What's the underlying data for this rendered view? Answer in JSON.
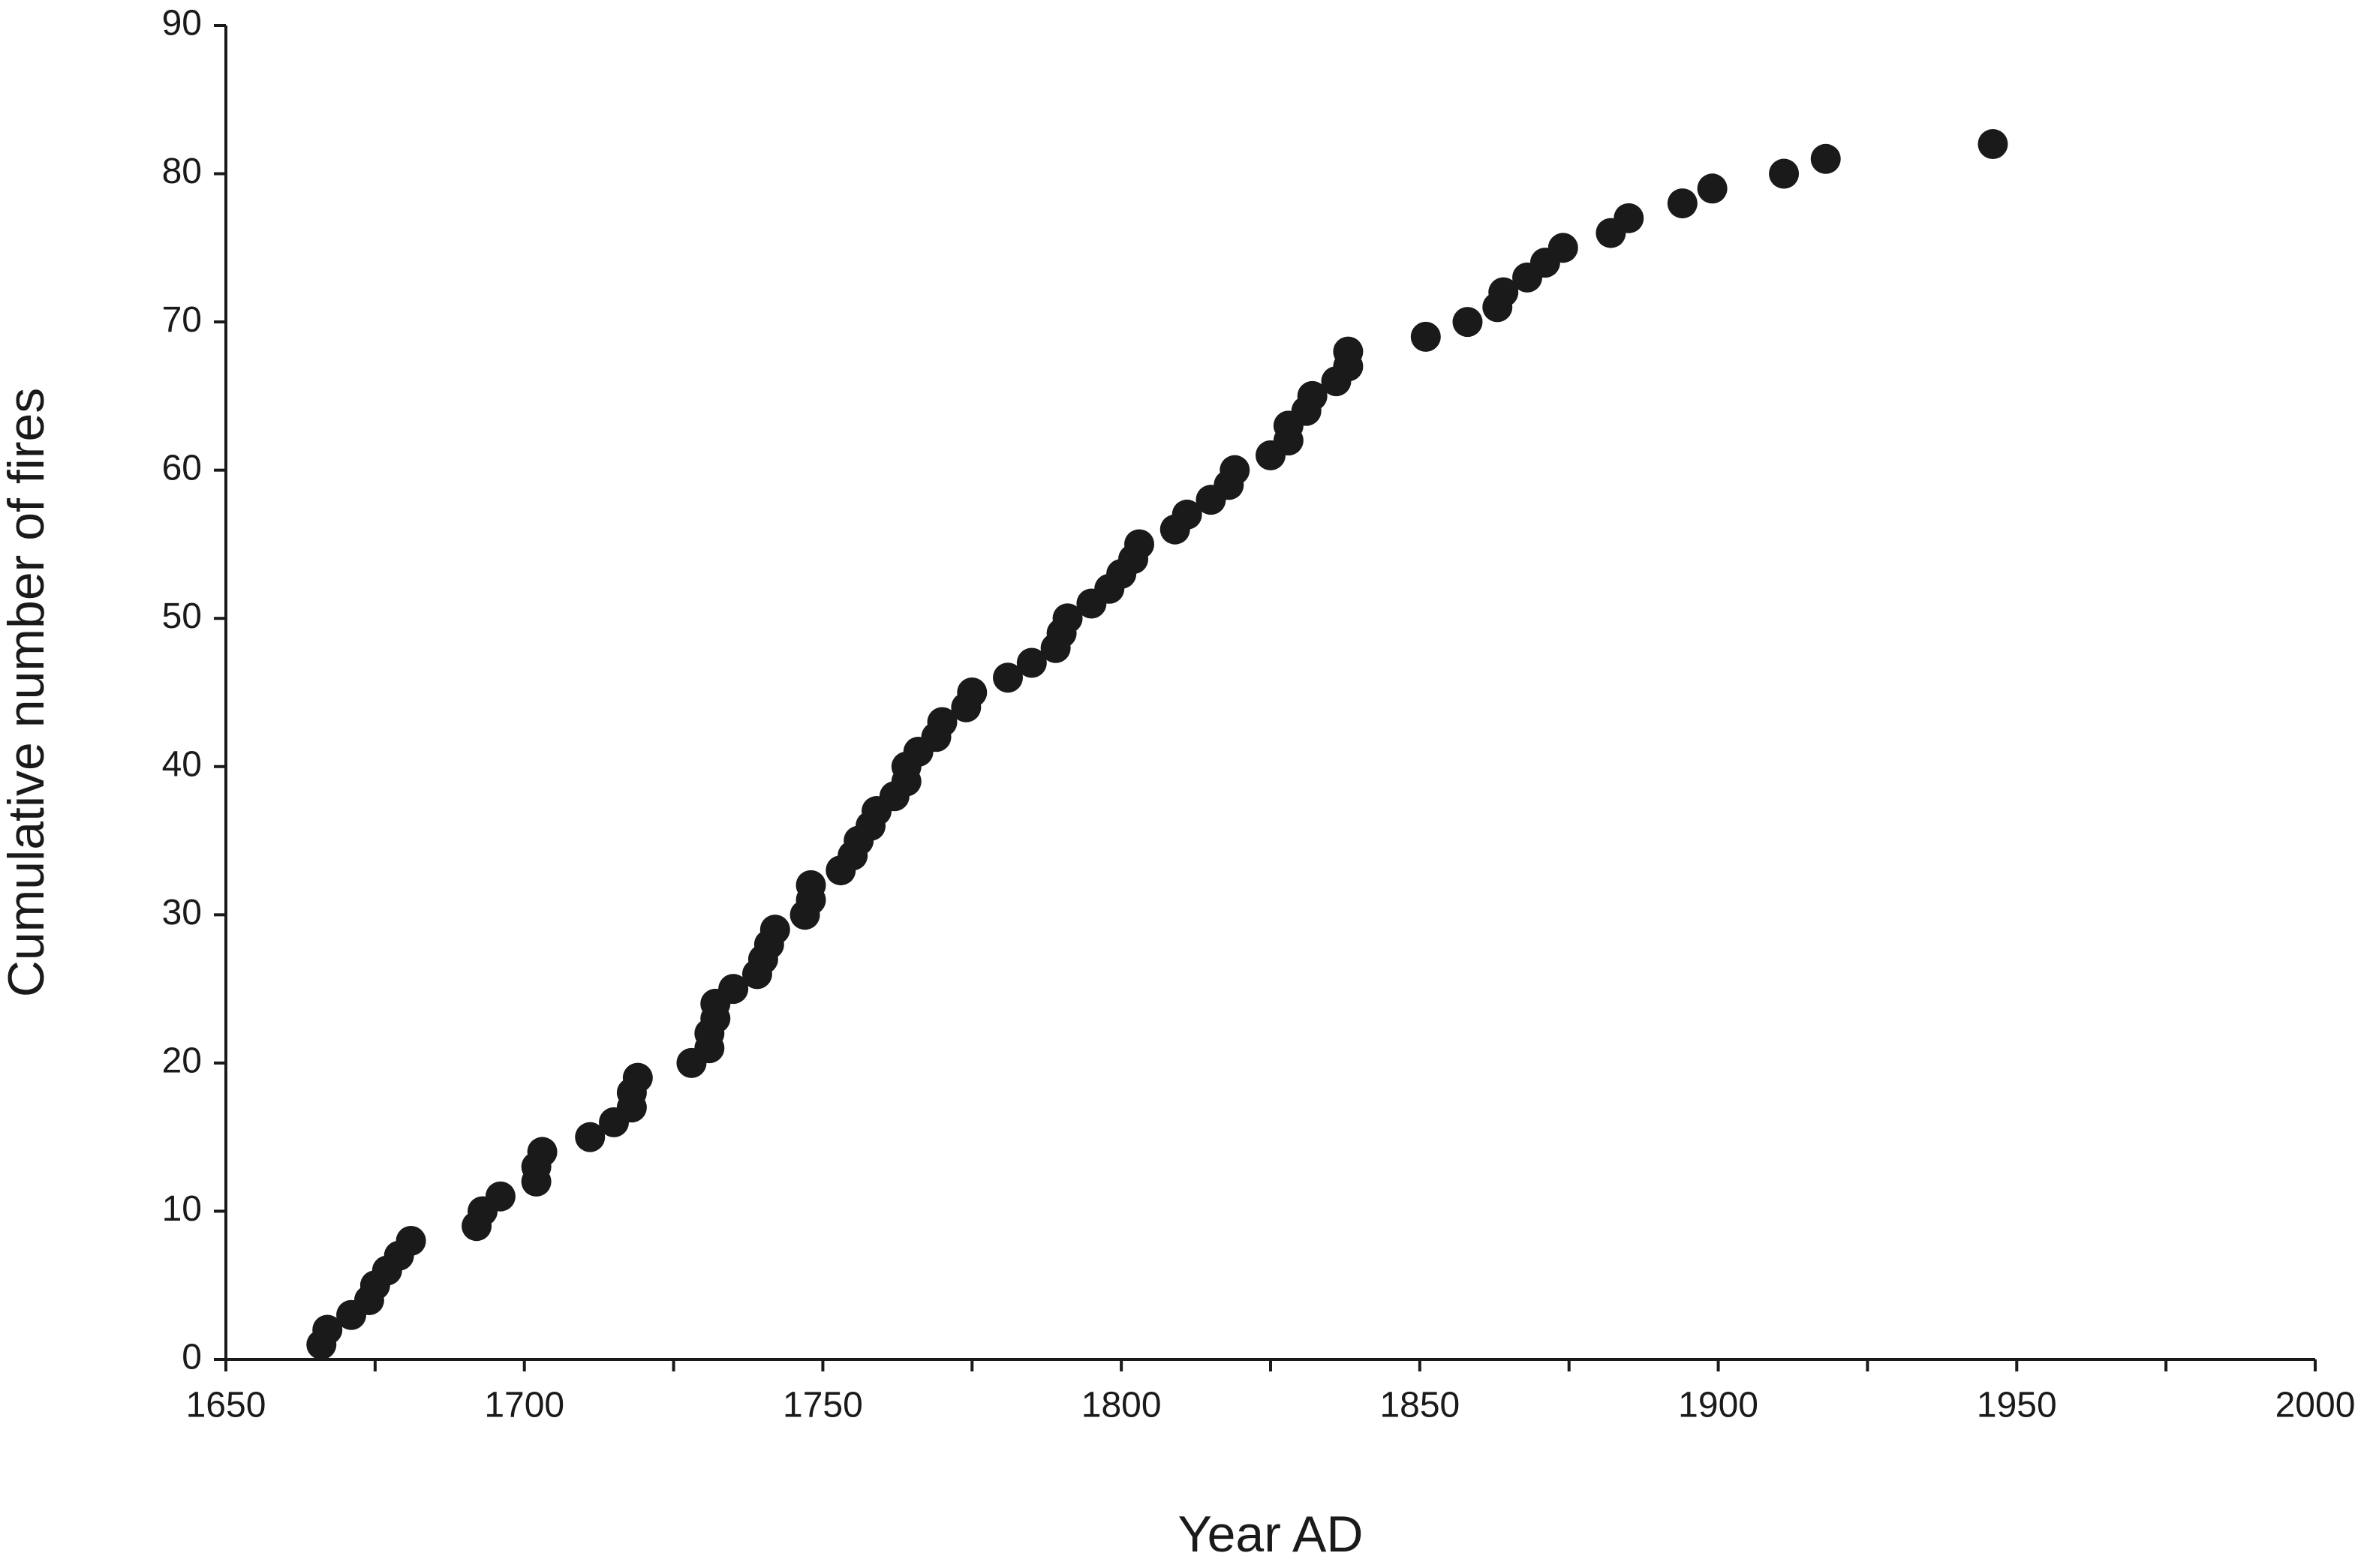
{
  "chart_data": {
    "type": "scatter",
    "x_label": "Year AD",
    "y_label": "Cumulative number of fires",
    "color": "#1a1a1a",
    "grid": false,
    "xlim": [
      1650,
      2000
    ],
    "xticks": [
      1650,
      1700,
      1750,
      1800,
      1850,
      1900,
      1950,
      2000
    ],
    "ylim": [
      0,
      90
    ],
    "yticks": [
      0,
      10,
      20,
      30,
      40,
      50,
      60,
      70,
      80,
      90
    ],
    "x": [
      1666,
      1667,
      1671,
      1674,
      1675,
      1677,
      1679,
      1681,
      1692,
      1693,
      1696,
      1702,
      1702,
      1703,
      1711,
      1715,
      1718,
      1718,
      1719,
      1728,
      1731,
      1731,
      1732,
      1732,
      1735,
      1739,
      1740,
      1741,
      1742,
      1747,
      1748,
      1748,
      1753,
      1755,
      1756,
      1758,
      1759,
      1762,
      1764,
      1764,
      1766,
      1769,
      1770,
      1774,
      1775,
      1781,
      1785,
      1789,
      1790,
      1791,
      1795,
      1798,
      1800,
      1802,
      1803,
      1809,
      1811,
      1815,
      1818,
      1819,
      1825,
      1828,
      1828,
      1831,
      1832,
      1836,
      1838,
      1838,
      1851,
      1858,
      1863,
      1864,
      1868,
      1871,
      1874,
      1882,
      1885,
      1894,
      1899,
      1911,
      1918,
      1946
    ],
    "values": [
      1,
      2,
      3,
      4,
      5,
      6,
      7,
      8,
      9,
      10,
      11,
      12,
      13,
      14,
      15,
      16,
      17,
      18,
      19,
      20,
      21,
      22,
      23,
      24,
      25,
      26,
      27,
      28,
      29,
      30,
      31,
      32,
      33,
      34,
      35,
      36,
      37,
      38,
      39,
      40,
      41,
      42,
      43,
      44,
      45,
      46,
      47,
      48,
      49,
      50,
      51,
      52,
      53,
      54,
      55,
      56,
      57,
      58,
      59,
      60,
      61,
      62,
      63,
      64,
      65,
      66,
      67,
      68,
      69,
      70,
      71,
      72,
      73,
      74,
      75,
      76,
      77,
      78,
      79,
      80,
      81,
      82
    ]
  }
}
